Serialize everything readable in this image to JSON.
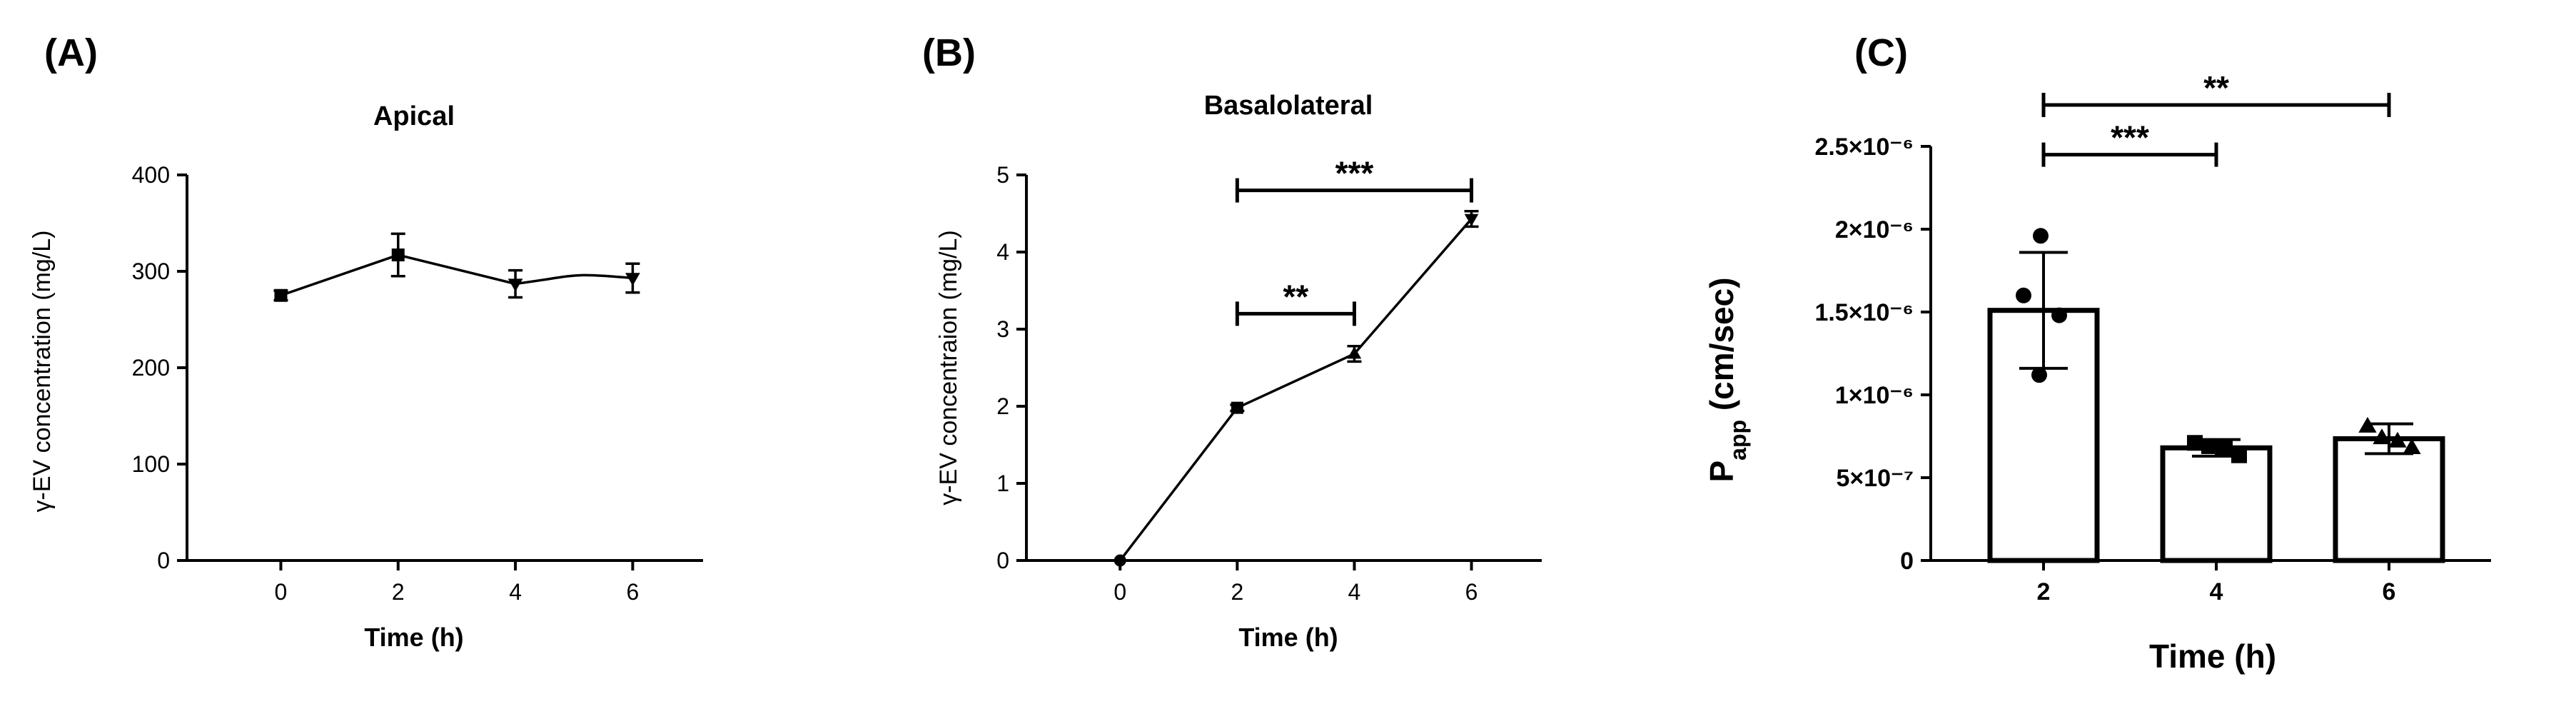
{
  "chart_data": [
    {
      "panel": "(A)",
      "type": "line",
      "title": "Apical",
      "xlabel": "Time (h)",
      "ylabel": "γ-EV concentration (mg/L)",
      "x": [
        0,
        2,
        4,
        6
      ],
      "xticks": [
        "0",
        "2",
        "4",
        "6"
      ],
      "xlim": [
        -1.6,
        7.2
      ],
      "yticks": [
        "0",
        "100",
        "200",
        "300",
        "400"
      ],
      "ylim": [
        0,
        400
      ],
      "series": [
        {
          "name": "Apical",
          "marker": "square",
          "values": [
            275,
            317,
            287,
            293
          ],
          "errors": [
            5,
            22,
            14,
            15
          ]
        }
      ],
      "significance": []
    },
    {
      "panel": "(B)",
      "type": "line",
      "title": "Basalolateral",
      "xlabel": "Time (h)",
      "ylabel": "γ-EV concentraion (mg/L)",
      "x": [
        0,
        2,
        4,
        6
      ],
      "xticks": [
        "0",
        "2",
        "4",
        "6"
      ],
      "xlim": [
        -1.6,
        7.2
      ],
      "yticks": [
        "0",
        "1",
        "2",
        "3",
        "4",
        "5"
      ],
      "ylim": [
        0,
        5
      ],
      "series": [
        {
          "name": "Basalolateral",
          "marker": "mixed",
          "values": [
            0,
            1.98,
            2.68,
            4.43
          ],
          "errors": [
            0,
            0.04,
            0.1,
            0.1
          ]
        }
      ],
      "significance": [
        {
          "from": 2,
          "to": 4,
          "y": 3.2,
          "label": "**"
        },
        {
          "from": 2,
          "to": 6,
          "y": 4.8,
          "label": "***"
        }
      ]
    },
    {
      "panel": "(C)",
      "type": "bar",
      "title": "",
      "xlabel": "Time (h)",
      "ylabel": "Papp (cm/sec)",
      "ylabel_main": "P",
      "ylabel_sub": "app",
      "ylabel_rest": " (cm/sec)",
      "categories": [
        "2",
        "4",
        "6"
      ],
      "values": [
        1.51e-06,
        6.8e-07,
        7.35e-07
      ],
      "errors": [
        3.5e-07,
        5e-08,
        9e-08
      ],
      "points": [
        [
          1.96e-06,
          1.6e-06,
          1.48e-06,
          1.12e-06
        ],
        [
          7.1e-07,
          6.9e-07,
          6.75e-07,
          6.35e-07
        ],
        [
          8.1e-07,
          7.4e-07,
          7.2e-07,
          6.8e-07
        ]
      ],
      "point_markers": [
        "circle",
        "square",
        "triangle"
      ],
      "yticks": [
        "0",
        "5×10⁻⁷",
        "1×10⁻⁶",
        "1.5×10⁻⁶",
        "2×10⁻⁶",
        "2.5×10⁻⁶"
      ],
      "ylim": [
        0,
        2.5e-06
      ],
      "significance": [
        {
          "from": 0,
          "to": 1,
          "y": 2.45e-06,
          "label": "***"
        },
        {
          "from": 0,
          "to": 2,
          "y": 2.75e-06,
          "label": "**"
        }
      ]
    }
  ]
}
